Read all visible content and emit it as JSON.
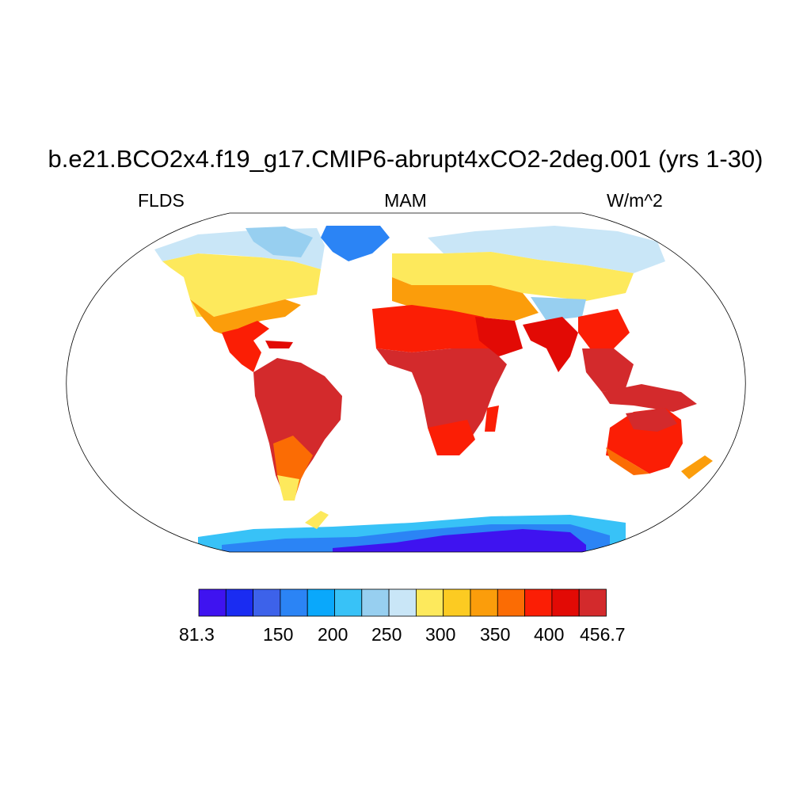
{
  "title": "b.e21.BCO2x4.f19_g17.CMIP6-abrupt4xCO2-2deg.001 (yrs 1-30)",
  "left_label": "FLDS",
  "center_label": "MAM",
  "right_label": "W/m^2",
  "colorbar": {
    "min_label": "81.3",
    "max_label": "456.7",
    "tick_labels": [
      "150",
      "200",
      "250",
      "300",
      "350",
      "400"
    ],
    "colors": [
      "#3f13f0",
      "#1a2cf2",
      "#3d62ea",
      "#2b84f5",
      "#0aa8fb",
      "#38c2f7",
      "#97cff0",
      "#c9e6f7",
      "#fde95c",
      "#fccb22",
      "#fb9d0b",
      "#fb6c04",
      "#fb1e05",
      "#e20a05",
      "#d32a2c"
    ]
  },
  "chart_data": {
    "type": "heatmap",
    "variable": "FLDS",
    "season": "MAM",
    "units": "W/m^2",
    "range": [
      81.3,
      456.7
    ],
    "levels": [
      150,
      175,
      200,
      225,
      250,
      275,
      300,
      325,
      350,
      375,
      400,
      425
    ]
  }
}
